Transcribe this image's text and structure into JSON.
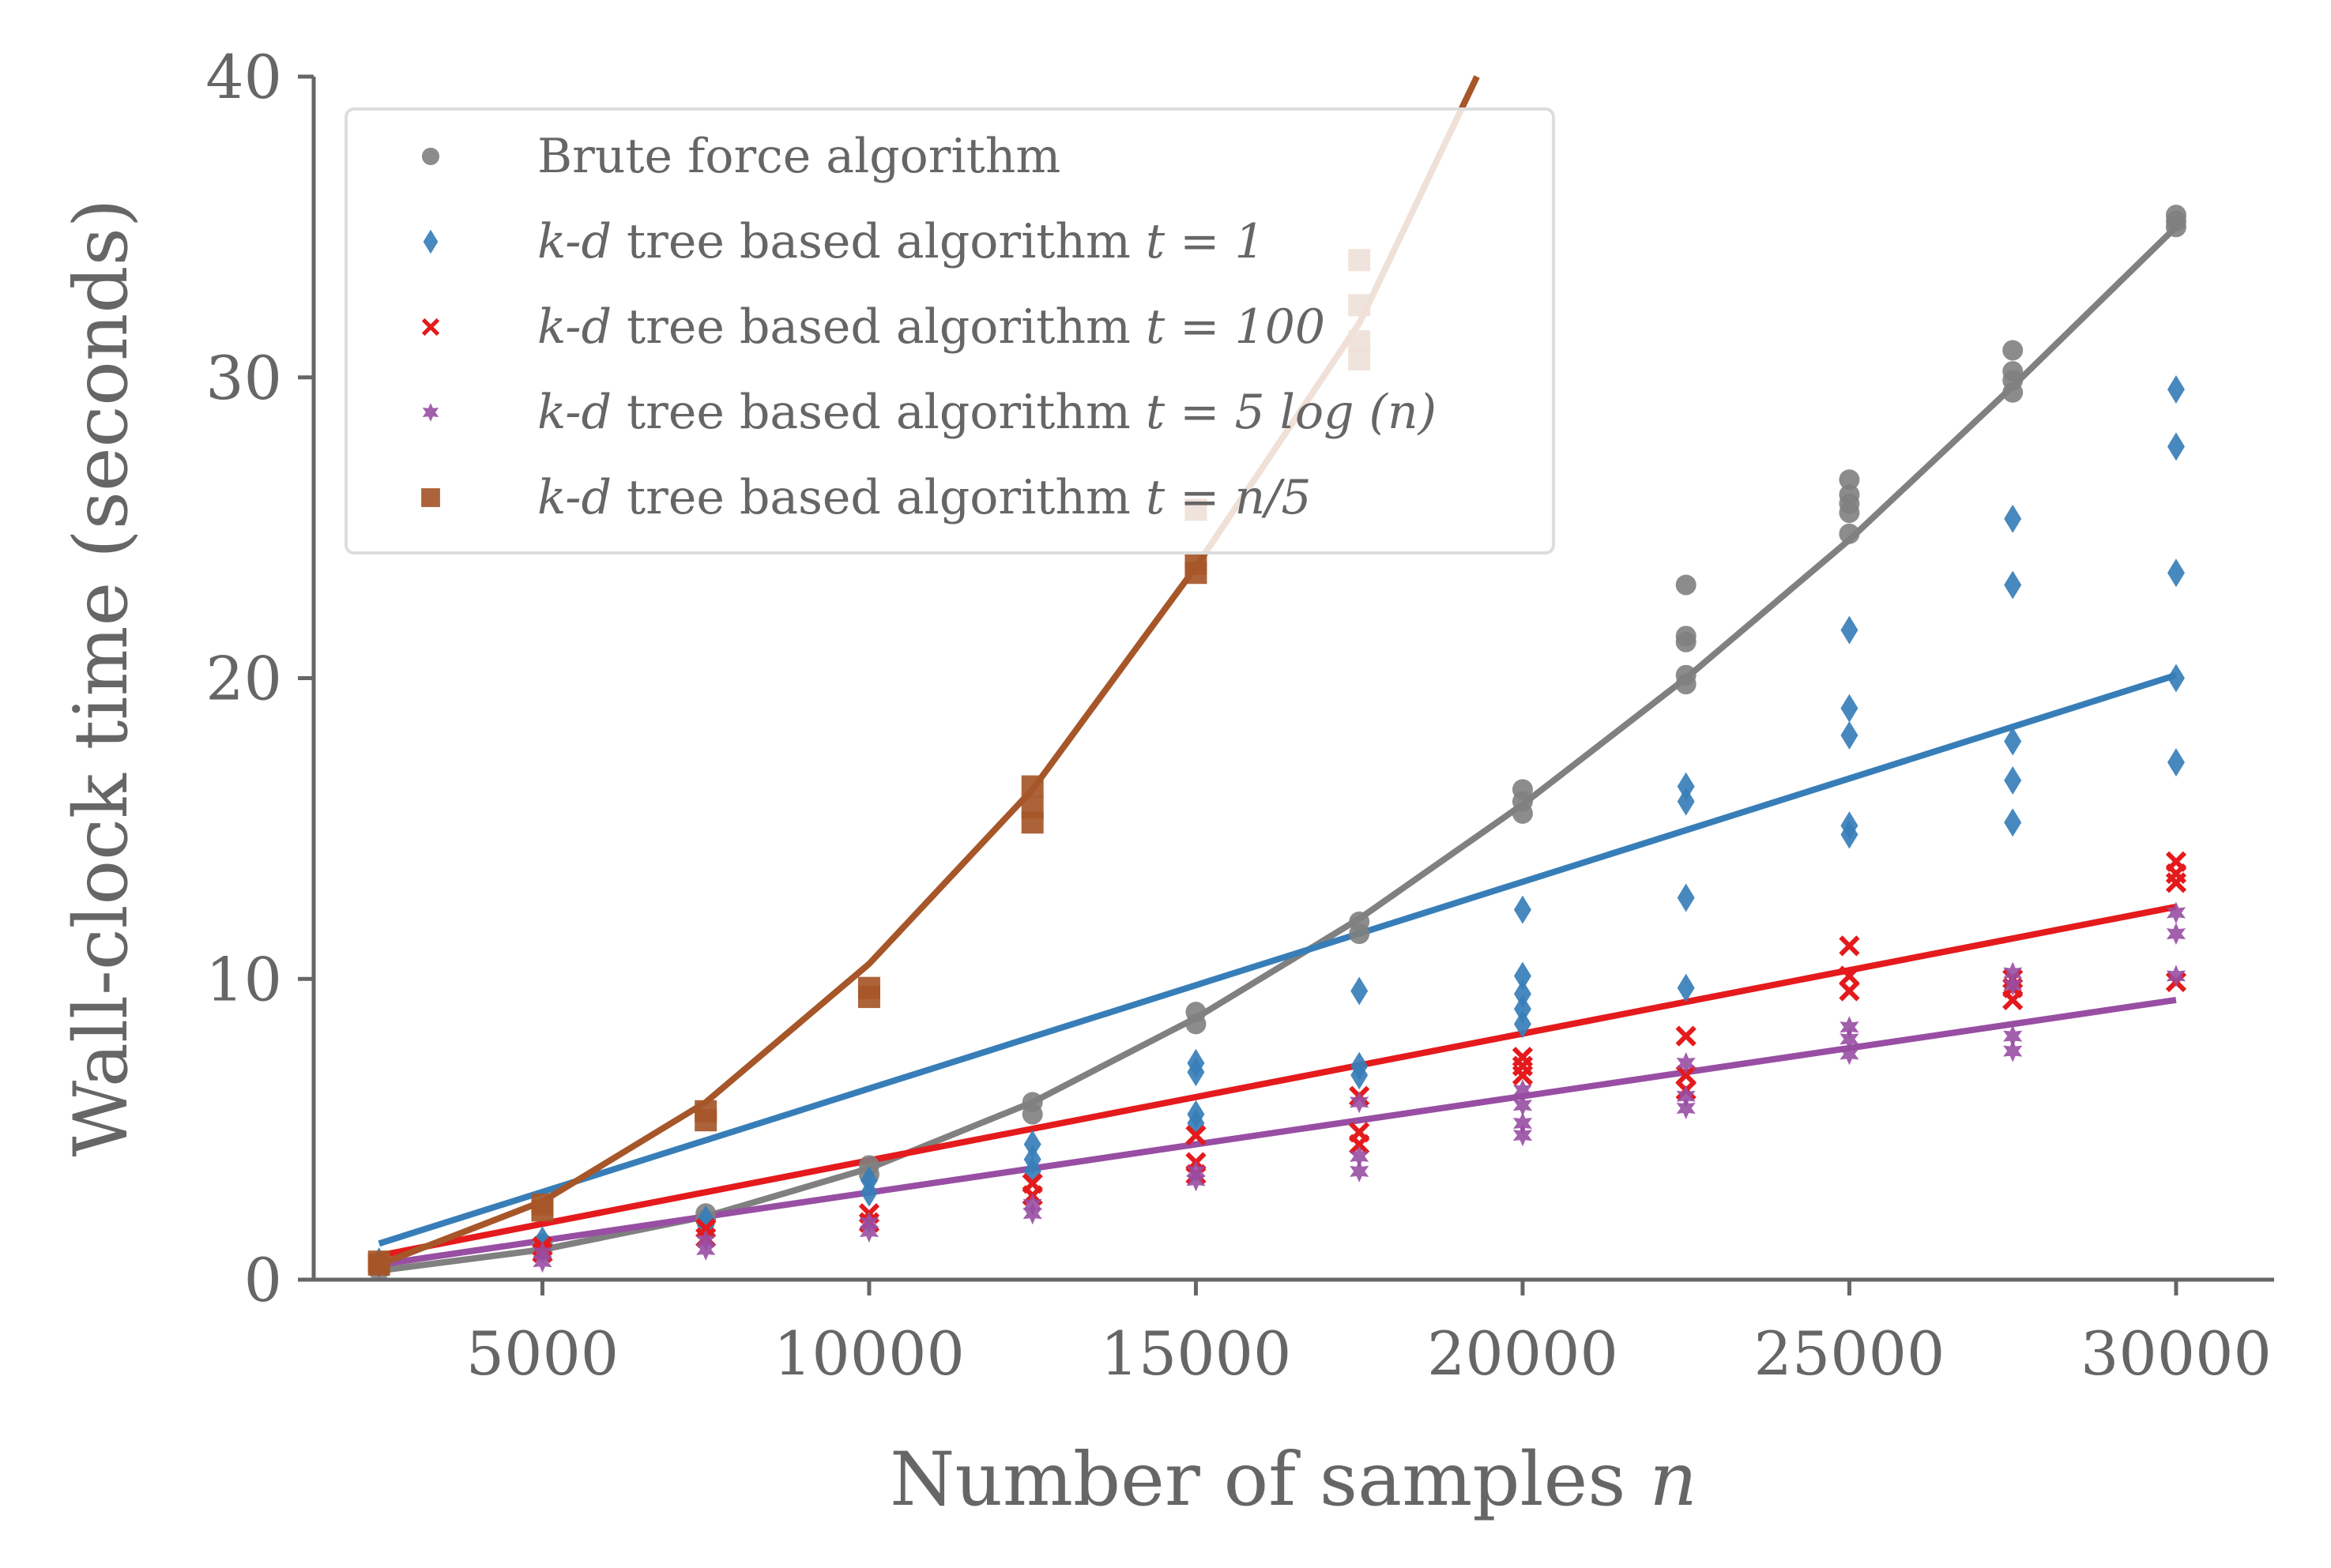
{
  "chart_data": {
    "type": "scatter",
    "title": "",
    "xlabel": "Number of samples",
    "xlabel_var": "n",
    "ylabel": "Wall-clock time (seconds)",
    "xlim": [
      1500,
      31500
    ],
    "ylim": [
      0,
      40
    ],
    "xticks": [
      5000,
      10000,
      15000,
      20000,
      25000,
      30000
    ],
    "yticks": [
      0,
      10,
      20,
      30,
      40
    ],
    "grid": false,
    "legend_position": "top-left",
    "series": [
      {
        "name": "Brute force algorithm",
        "legend_plain": "Brute force algorithm",
        "legend_italic": "",
        "legend_math": "",
        "marker": "circle",
        "color": "#808080",
        "points": [
          [
            2500,
            0.3
          ],
          [
            2500,
            0.5
          ],
          [
            5000,
            1.0
          ],
          [
            5000,
            1.2
          ],
          [
            7500,
            2.0
          ],
          [
            7500,
            2.2
          ],
          [
            10000,
            3.5
          ],
          [
            10000,
            3.8
          ],
          [
            12500,
            5.5
          ],
          [
            12500,
            5.9
          ],
          [
            15000,
            8.5
          ],
          [
            15000,
            8.9
          ],
          [
            17500,
            11.5
          ],
          [
            17500,
            11.9
          ],
          [
            20000,
            15.5
          ],
          [
            20000,
            15.9
          ],
          [
            20000,
            16.3
          ],
          [
            22500,
            19.8
          ],
          [
            22500,
            20.1
          ],
          [
            22500,
            21.2
          ],
          [
            22500,
            21.4
          ],
          [
            22500,
            23.1
          ],
          [
            25000,
            24.8
          ],
          [
            25000,
            25.5
          ],
          [
            25000,
            25.8
          ],
          [
            25000,
            26.1
          ],
          [
            25000,
            26.6
          ],
          [
            27500,
            29.5
          ],
          [
            27500,
            29.9
          ],
          [
            27500,
            30.2
          ],
          [
            27500,
            30.9
          ],
          [
            30000,
            35.0
          ],
          [
            30000,
            35.2
          ],
          [
            30000,
            35.4
          ]
        ],
        "fit": [
          [
            2500,
            0.3
          ],
          [
            5000,
            1.0
          ],
          [
            7500,
            2.1
          ],
          [
            10000,
            3.7
          ],
          [
            12500,
            5.9
          ],
          [
            15000,
            8.7
          ],
          [
            17500,
            12.0
          ],
          [
            20000,
            15.8
          ],
          [
            22500,
            20.0
          ],
          [
            25000,
            24.6
          ],
          [
            27500,
            29.7
          ],
          [
            30000,
            35.0
          ]
        ]
      },
      {
        "name": "k-d tree based algorithm t = 1",
        "legend_plain": "",
        "legend_italic": "k-d",
        "legend_text": " tree based algorithm ",
        "legend_math": "t = 1",
        "marker": "diamond",
        "color": "#377eb8",
        "points": [
          [
            2500,
            0.6
          ],
          [
            5000,
            1.1
          ],
          [
            5000,
            1.3
          ],
          [
            7500,
            1.8
          ],
          [
            7500,
            2.0
          ],
          [
            10000,
            2.9
          ],
          [
            10000,
            3.3
          ],
          [
            12500,
            3.6
          ],
          [
            12500,
            4.0
          ],
          [
            12500,
            4.5
          ],
          [
            15000,
            5.2
          ],
          [
            15000,
            5.5
          ],
          [
            15000,
            6.9
          ],
          [
            15000,
            7.2
          ],
          [
            17500,
            6.8
          ],
          [
            17500,
            7.1
          ],
          [
            17500,
            9.6
          ],
          [
            20000,
            8.5
          ],
          [
            20000,
            9.0
          ],
          [
            20000,
            9.5
          ],
          [
            20000,
            10.1
          ],
          [
            20000,
            12.3
          ],
          [
            22500,
            9.7
          ],
          [
            22500,
            12.7
          ],
          [
            22500,
            15.9
          ],
          [
            22500,
            16.4
          ],
          [
            25000,
            14.8
          ],
          [
            25000,
            15.1
          ],
          [
            25000,
            18.1
          ],
          [
            25000,
            19.0
          ],
          [
            25000,
            21.6
          ],
          [
            27500,
            15.2
          ],
          [
            27500,
            16.6
          ],
          [
            27500,
            17.9
          ],
          [
            27500,
            23.1
          ],
          [
            27500,
            25.3
          ],
          [
            30000,
            17.2
          ],
          [
            30000,
            20.0
          ],
          [
            30000,
            23.5
          ],
          [
            30000,
            27.7
          ],
          [
            30000,
            29.6
          ]
        ],
        "fit": [
          [
            2500,
            1.2
          ],
          [
            30000,
            20.1
          ]
        ]
      },
      {
        "name": "k-d tree based algorithm t = 100",
        "legend_plain": "",
        "legend_italic": "k-d",
        "legend_text": " tree based algorithm ",
        "legend_math": "t = 100",
        "marker": "x",
        "color": "#e41a1c",
        "points": [
          [
            2500,
            0.5
          ],
          [
            5000,
            0.9
          ],
          [
            5000,
            1.1
          ],
          [
            7500,
            1.4
          ],
          [
            7500,
            1.7
          ],
          [
            10000,
            1.9
          ],
          [
            10000,
            2.2
          ],
          [
            12500,
            2.8
          ],
          [
            12500,
            3.2
          ],
          [
            15000,
            3.5
          ],
          [
            15000,
            3.9
          ],
          [
            15000,
            4.8
          ],
          [
            17500,
            4.5
          ],
          [
            17500,
            4.9
          ],
          [
            17500,
            6.1
          ],
          [
            20000,
            6.8
          ],
          [
            20000,
            7.1
          ],
          [
            20000,
            7.4
          ],
          [
            22500,
            6.3
          ],
          [
            22500,
            6.8
          ],
          [
            22500,
            8.1
          ],
          [
            25000,
            9.6
          ],
          [
            25000,
            10.1
          ],
          [
            25000,
            11.1
          ],
          [
            27500,
            9.3
          ],
          [
            27500,
            9.7
          ],
          [
            27500,
            10.0
          ],
          [
            30000,
            9.9
          ],
          [
            30000,
            13.2
          ],
          [
            30000,
            13.5
          ],
          [
            30000,
            13.9
          ]
        ],
        "fit": [
          [
            2500,
            0.8
          ],
          [
            30000,
            12.4
          ]
        ]
      },
      {
        "name": "k-d tree based algorithm t = 5 log (n)",
        "legend_plain": "",
        "legend_italic": "k-d",
        "legend_text": " tree based algorithm ",
        "legend_math": "t = 5 log (n)",
        "marker": "star",
        "color": "#984ea3",
        "points": [
          [
            2500,
            0.4
          ],
          [
            5000,
            0.6
          ],
          [
            5000,
            0.9
          ],
          [
            7500,
            1.0
          ],
          [
            7500,
            1.3
          ],
          [
            10000,
            1.6
          ],
          [
            10000,
            1.9
          ],
          [
            12500,
            2.2
          ],
          [
            12500,
            2.5
          ],
          [
            15000,
            3.3
          ],
          [
            15000,
            3.6
          ],
          [
            17500,
            3.6
          ],
          [
            17500,
            4.1
          ],
          [
            17500,
            5.9
          ],
          [
            20000,
            4.8
          ],
          [
            20000,
            5.2
          ],
          [
            20000,
            5.8
          ],
          [
            20000,
            6.3
          ],
          [
            22500,
            5.7
          ],
          [
            22500,
            6.1
          ],
          [
            22500,
            7.2
          ],
          [
            25000,
            7.5
          ],
          [
            25000,
            8.0
          ],
          [
            25000,
            8.4
          ],
          [
            27500,
            7.6
          ],
          [
            27500,
            8.1
          ],
          [
            27500,
            9.8
          ],
          [
            27500,
            10.2
          ],
          [
            30000,
            10.1
          ],
          [
            30000,
            11.5
          ],
          [
            30000,
            12.2
          ]
        ],
        "fit": [
          [
            2500,
            0.5
          ],
          [
            30000,
            9.3
          ]
        ]
      },
      {
        "name": "k-d tree based algorithm t = n/5",
        "legend_plain": "",
        "legend_italic": "k-d",
        "legend_text": " tree based algorithm ",
        "legend_math": "t = n/5",
        "marker": "square",
        "color": "#a65628",
        "points": [
          [
            2500,
            0.5
          ],
          [
            2500,
            0.6
          ],
          [
            5000,
            2.3
          ],
          [
            5000,
            2.5
          ],
          [
            7500,
            5.3
          ],
          [
            7500,
            5.6
          ],
          [
            10000,
            9.4
          ],
          [
            10000,
            9.7
          ],
          [
            12500,
            15.2
          ],
          [
            12500,
            15.7
          ],
          [
            12500,
            16.4
          ],
          [
            15000,
            23.5
          ],
          [
            15000,
            23.8
          ],
          [
            15000,
            25.6
          ],
          [
            17500,
            30.6
          ],
          [
            17500,
            31.2
          ],
          [
            17500,
            32.4
          ],
          [
            17500,
            33.9
          ]
        ],
        "fit": [
          [
            2500,
            0.5
          ],
          [
            5000,
            2.6
          ],
          [
            7500,
            5.9
          ],
          [
            10000,
            10.5
          ],
          [
            12500,
            16.3
          ],
          [
            15000,
            23.7
          ],
          [
            17500,
            31.8
          ],
          [
            19300,
            40.0
          ]
        ]
      }
    ]
  }
}
